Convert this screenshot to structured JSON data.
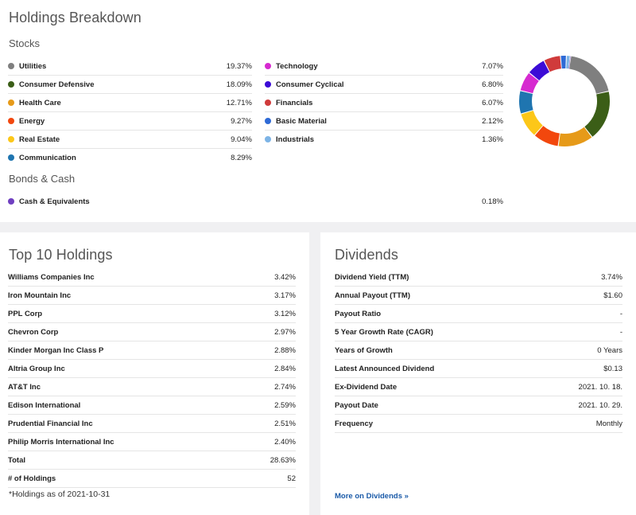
{
  "breakdown": {
    "title": "Holdings Breakdown",
    "stocks_label": "Stocks",
    "bonds_label": "Bonds & Cash",
    "stocks_left": [
      {
        "label": "Utilities",
        "value": "19.37%",
        "color": "#7f7f7f"
      },
      {
        "label": "Consumer Defensive",
        "value": "18.09%",
        "color": "#3b5e17"
      },
      {
        "label": "Health Care",
        "value": "12.71%",
        "color": "#e69a19"
      },
      {
        "label": "Energy",
        "value": "9.27%",
        "color": "#f2470d"
      },
      {
        "label": "Real Estate",
        "value": "9.04%",
        "color": "#fcc719"
      },
      {
        "label": "Communication",
        "value": "8.29%",
        "color": "#1f75b0"
      }
    ],
    "stocks_right": [
      {
        "label": "Technology",
        "value": "7.07%",
        "color": "#d62ad0"
      },
      {
        "label": "Consumer Cyclical",
        "value": "6.80%",
        "color": "#3b0bd6"
      },
      {
        "label": "Financials",
        "value": "6.07%",
        "color": "#d03b3b"
      },
      {
        "label": "Basic Material",
        "value": "2.12%",
        "color": "#2e6ad6"
      },
      {
        "label": "Industrials",
        "value": "1.36%",
        "color": "#7db4e6"
      }
    ],
    "bonds": [
      {
        "label": "Cash & Equivalents",
        "value": "0.18%",
        "color": "#6f3fc0"
      }
    ]
  },
  "chart_data": {
    "type": "pie",
    "title": "",
    "categories": [
      "Utilities",
      "Consumer Defensive",
      "Health Care",
      "Energy",
      "Real Estate",
      "Communication",
      "Technology",
      "Consumer Cyclical",
      "Financials",
      "Basic Material",
      "Industrials",
      "Cash & Equivalents"
    ],
    "values": [
      19.37,
      18.09,
      12.71,
      9.27,
      9.04,
      8.29,
      7.07,
      6.8,
      6.07,
      2.12,
      1.36,
      0.18
    ],
    "colors": [
      "#7f7f7f",
      "#3b5e17",
      "#e69a19",
      "#f2470d",
      "#fcc719",
      "#1f75b0",
      "#d62ad0",
      "#3b0bd6",
      "#d03b3b",
      "#2e6ad6",
      "#7db4e6",
      "#6f3fc0"
    ],
    "style": "donut"
  },
  "top10": {
    "title": "Top 10 Holdings",
    "rows": [
      {
        "label": "Williams Companies Inc",
        "value": "3.42%"
      },
      {
        "label": "Iron Mountain Inc",
        "value": "3.17%"
      },
      {
        "label": "PPL Corp",
        "value": "3.12%"
      },
      {
        "label": "Chevron Corp",
        "value": "2.97%"
      },
      {
        "label": "Kinder Morgan Inc Class P",
        "value": "2.88%"
      },
      {
        "label": "Altria Group Inc",
        "value": "2.84%"
      },
      {
        "label": "AT&T Inc",
        "value": "2.74%"
      },
      {
        "label": "Edison International",
        "value": "2.59%"
      },
      {
        "label": "Prudential Financial Inc",
        "value": "2.51%"
      },
      {
        "label": "Philip Morris International Inc",
        "value": "2.40%"
      },
      {
        "label": "Total",
        "value": "28.63%"
      },
      {
        "label": "# of Holdings",
        "value": "52"
      }
    ],
    "note": "*Holdings as of 2021-10-31"
  },
  "dividends": {
    "title": "Dividends",
    "rows": [
      {
        "label": "Dividend Yield (TTM)",
        "value": "3.74%"
      },
      {
        "label": "Annual Payout (TTM)",
        "value": "$1.60"
      },
      {
        "label": "Payout Ratio",
        "value": "-"
      },
      {
        "label": "5 Year Growth Rate (CAGR)",
        "value": "-"
      },
      {
        "label": "Years of Growth",
        "value": "0 Years"
      },
      {
        "label": "Latest Announced Dividend",
        "value": "$0.13"
      },
      {
        "label": "Ex-Dividend Date",
        "value": "2021. 10. 18."
      },
      {
        "label": "Payout Date",
        "value": "2021. 10. 29."
      },
      {
        "label": "Frequency",
        "value": "Monthly"
      }
    ],
    "more_link": "More on Dividends »"
  }
}
